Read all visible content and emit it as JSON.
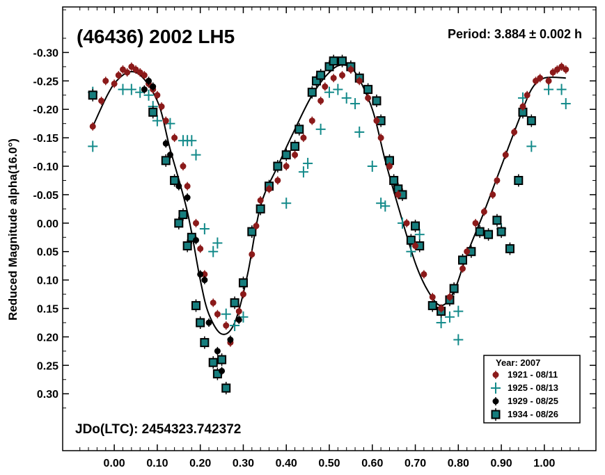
{
  "chart_data": {
    "type": "scatter",
    "title": "(46436) 2002 LH5",
    "period_text": "Period: 3.884 ± 0.002 h",
    "jdo_text": "JDo(LTC): 2454323.742372",
    "ylabel": "Reduced Magnitude alpha(16.0°)",
    "xlabel": "",
    "xlim": [
      -0.12,
      1.12
    ],
    "ylim": [
      0.4,
      -0.38
    ],
    "x_ticks": [
      "0.00",
      "0.10",
      "0.20",
      "0.30",
      "0.40",
      "0.50",
      "0.60",
      "0.70",
      "0.80",
      "0.90",
      "1.00"
    ],
    "y_ticks": [
      "-0.30",
      "-0.25",
      "-0.20",
      "-0.15",
      "-0.10",
      "-0.05",
      "0.00",
      "0.05",
      "0.10",
      "0.15",
      "0.20",
      "0.25",
      "0.30"
    ],
    "legend": {
      "title": "Year: 2007",
      "placement": "bottom-right",
      "entries": [
        "1921 - 08/11",
        "1925 - 08/13",
        "1929 - 08/25",
        "1934 - 08/26"
      ]
    },
    "colors": {
      "s1921": "#8b1a1a",
      "s1925": "#138a8a",
      "s1929": "#000000",
      "s1934": "#167d7d"
    },
    "fit_curve": [
      [
        -0.05,
        -0.17
      ],
      [
        0.0,
        -0.245
      ],
      [
        0.05,
        -0.265
      ],
      [
        0.1,
        -0.215
      ],
      [
        0.13,
        -0.13
      ],
      [
        0.17,
        -0.02
      ],
      [
        0.2,
        0.1
      ],
      [
        0.22,
        0.16
      ],
      [
        0.25,
        0.195
      ],
      [
        0.28,
        0.175
      ],
      [
        0.31,
        0.09
      ],
      [
        0.34,
        -0.03
      ],
      [
        0.38,
        -0.1
      ],
      [
        0.42,
        -0.165
      ],
      [
        0.46,
        -0.225
      ],
      [
        0.5,
        -0.265
      ],
      [
        0.53,
        -0.278
      ],
      [
        0.56,
        -0.265
      ],
      [
        0.6,
        -0.2
      ],
      [
        0.63,
        -0.11
      ],
      [
        0.66,
        -0.03
      ],
      [
        0.7,
        0.07
      ],
      [
        0.73,
        0.12
      ],
      [
        0.76,
        0.145
      ],
      [
        0.79,
        0.12
      ],
      [
        0.82,
        0.055
      ],
      [
        0.86,
        -0.02
      ],
      [
        0.9,
        -0.1
      ],
      [
        0.94,
        -0.18
      ],
      [
        0.97,
        -0.235
      ],
      [
        1.0,
        -0.255
      ],
      [
        1.05,
        -0.255
      ]
    ],
    "series": [
      {
        "name": "1921 - 08/11",
        "marker": "dot",
        "points": [
          [
            -0.05,
            -0.17
          ],
          [
            -0.03,
            -0.215
          ],
          [
            -0.02,
            -0.25
          ],
          [
            0.0,
            -0.245
          ],
          [
            0.01,
            -0.26
          ],
          [
            0.02,
            -0.27
          ],
          [
            0.03,
            -0.265
          ],
          [
            0.04,
            -0.275
          ],
          [
            0.05,
            -0.27
          ],
          [
            0.06,
            -0.265
          ],
          [
            0.07,
            -0.26
          ],
          [
            0.08,
            -0.245
          ],
          [
            0.09,
            -0.235
          ],
          [
            0.1,
            -0.225
          ],
          [
            0.11,
            -0.205
          ],
          [
            0.12,
            -0.18
          ],
          [
            0.14,
            -0.15
          ],
          [
            0.16,
            -0.1
          ],
          [
            0.17,
            -0.065
          ],
          [
            0.19,
            0.0
          ],
          [
            0.2,
            0.045
          ],
          [
            0.21,
            0.09
          ],
          [
            0.23,
            0.14
          ],
          [
            0.24,
            0.16
          ],
          [
            0.26,
            0.18
          ],
          [
            0.27,
            0.21
          ],
          [
            0.29,
            0.155
          ],
          [
            0.3,
            0.125
          ],
          [
            0.32,
            0.055
          ],
          [
            0.33,
            0.005
          ],
          [
            0.34,
            -0.04
          ],
          [
            0.36,
            -0.06
          ],
          [
            0.38,
            -0.075
          ],
          [
            0.4,
            -0.1
          ],
          [
            0.42,
            -0.12
          ],
          [
            0.44,
            -0.15
          ],
          [
            0.46,
            -0.18
          ],
          [
            0.48,
            -0.215
          ],
          [
            0.49,
            -0.24
          ],
          [
            0.51,
            -0.255
          ],
          [
            0.53,
            -0.26
          ],
          [
            0.55,
            -0.27
          ],
          [
            0.57,
            -0.25
          ],
          [
            0.59,
            -0.22
          ],
          [
            0.61,
            -0.18
          ],
          [
            0.62,
            -0.15
          ],
          [
            0.64,
            -0.1
          ],
          [
            0.66,
            -0.05
          ],
          [
            0.68,
            0.0
          ],
          [
            0.7,
            0.04
          ],
          [
            0.72,
            0.09
          ],
          [
            0.74,
            0.13
          ],
          [
            0.76,
            0.15
          ],
          [
            0.78,
            0.13
          ],
          [
            0.81,
            0.08
          ],
          [
            0.82,
            0.05
          ],
          [
            0.84,
            0.0
          ],
          [
            0.86,
            -0.02
          ],
          [
            0.88,
            -0.05
          ],
          [
            0.89,
            -0.075
          ],
          [
            0.91,
            -0.12
          ],
          [
            0.93,
            -0.16
          ],
          [
            0.95,
            -0.205
          ],
          [
            0.96,
            -0.225
          ],
          [
            0.98,
            -0.25
          ],
          [
            0.99,
            -0.255
          ],
          [
            1.01,
            -0.25
          ],
          [
            1.02,
            -0.265
          ],
          [
            1.03,
            -0.27
          ],
          [
            1.04,
            -0.275
          ],
          [
            1.05,
            -0.27
          ]
        ]
      },
      {
        "name": "1925 - 08/13",
        "marker": "cross",
        "points": [
          [
            -0.05,
            -0.23
          ],
          [
            -0.05,
            -0.135
          ],
          [
            0.02,
            -0.235
          ],
          [
            0.04,
            -0.235
          ],
          [
            0.06,
            -0.23
          ],
          [
            0.08,
            -0.225
          ],
          [
            0.09,
            -0.205
          ],
          [
            0.1,
            -0.18
          ],
          [
            0.13,
            -0.175
          ],
          [
            0.16,
            -0.145
          ],
          [
            0.17,
            -0.145
          ],
          [
            0.18,
            -0.145
          ],
          [
            0.19,
            -0.12
          ],
          [
            0.21,
            0.01
          ],
          [
            0.23,
            0.05
          ],
          [
            0.24,
            0.035
          ],
          [
            0.26,
            0.16
          ],
          [
            0.28,
            0.18
          ],
          [
            0.3,
            0.165
          ],
          [
            0.4,
            -0.035
          ],
          [
            0.44,
            -0.09
          ],
          [
            0.45,
            -0.105
          ],
          [
            0.48,
            -0.165
          ],
          [
            0.5,
            -0.23
          ],
          [
            0.52,
            -0.235
          ],
          [
            0.54,
            -0.22
          ],
          [
            0.56,
            -0.21
          ],
          [
            0.57,
            -0.16
          ],
          [
            0.6,
            -0.1
          ],
          [
            0.62,
            -0.035
          ],
          [
            0.63,
            -0.03
          ],
          [
            0.67,
            0.0
          ],
          [
            0.69,
            0.05
          ],
          [
            0.71,
            0.02
          ],
          [
            0.76,
            0.175
          ],
          [
            0.78,
            0.165
          ],
          [
            0.8,
            0.155
          ],
          [
            0.8,
            0.205
          ],
          [
            0.9,
            0.01
          ],
          [
            0.95,
            -0.22
          ],
          [
            0.97,
            -0.135
          ],
          [
            1.01,
            -0.235
          ],
          [
            1.04,
            -0.235
          ],
          [
            1.05,
            -0.21
          ]
        ]
      },
      {
        "name": "1929 - 08/25",
        "marker": "dot",
        "points": [
          [
            0.07,
            -0.235
          ],
          [
            0.08,
            -0.25
          ],
          [
            0.09,
            -0.24
          ],
          [
            0.12,
            -0.14
          ],
          [
            0.13,
            -0.12
          ],
          [
            0.15,
            -0.065
          ],
          [
            0.17,
            -0.045
          ],
          [
            0.19,
            0.03
          ],
          [
            0.2,
            0.09
          ],
          [
            0.21,
            0.1
          ],
          [
            0.22,
            0.175
          ],
          [
            0.24,
            0.225
          ],
          [
            0.25,
            0.26
          ],
          [
            0.27,
            0.205
          ],
          [
            0.29,
            0.17
          ]
        ]
      },
      {
        "name": "1934 - 08/26",
        "marker": "square",
        "points": [
          [
            -0.05,
            -0.225
          ],
          [
            0.09,
            -0.195
          ],
          [
            0.12,
            -0.11
          ],
          [
            0.14,
            -0.075
          ],
          [
            0.15,
            0.0
          ],
          [
            0.16,
            -0.015
          ],
          [
            0.17,
            0.04
          ],
          [
            0.18,
            0.025
          ],
          [
            0.19,
            0.145
          ],
          [
            0.2,
            0.175
          ],
          [
            0.21,
            0.21
          ],
          [
            0.23,
            0.245
          ],
          [
            0.24,
            0.265
          ],
          [
            0.25,
            0.24
          ],
          [
            0.26,
            0.29
          ],
          [
            0.28,
            0.14
          ],
          [
            0.3,
            0.105
          ],
          [
            0.32,
            0.015
          ],
          [
            0.34,
            -0.025
          ],
          [
            0.36,
            -0.065
          ],
          [
            0.38,
            -0.1
          ],
          [
            0.4,
            -0.12
          ],
          [
            0.42,
            -0.135
          ],
          [
            0.43,
            -0.165
          ],
          [
            0.46,
            -0.23
          ],
          [
            0.47,
            -0.25
          ],
          [
            0.48,
            -0.26
          ],
          [
            0.5,
            -0.275
          ],
          [
            0.51,
            -0.285
          ],
          [
            0.53,
            -0.285
          ],
          [
            0.55,
            -0.275
          ],
          [
            0.57,
            -0.255
          ],
          [
            0.59,
            -0.235
          ],
          [
            0.61,
            -0.215
          ],
          [
            0.62,
            -0.18
          ],
          [
            0.64,
            -0.11
          ],
          [
            0.65,
            -0.075
          ],
          [
            0.66,
            -0.06
          ],
          [
            0.67,
            -0.05
          ],
          [
            0.69,
            0.03
          ],
          [
            0.7,
            0.005
          ],
          [
            0.71,
            0.04
          ],
          [
            0.74,
            0.145
          ],
          [
            0.76,
            0.155
          ],
          [
            0.78,
            0.135
          ],
          [
            0.79,
            0.115
          ],
          [
            0.81,
            0.065
          ],
          [
            0.83,
            0.05
          ],
          [
            0.85,
            0.015
          ],
          [
            0.87,
            0.02
          ],
          [
            0.89,
            -0.005
          ],
          [
            0.9,
            0.015
          ],
          [
            0.92,
            0.045
          ],
          [
            0.94,
            -0.075
          ],
          [
            0.95,
            -0.195
          ],
          [
            0.97,
            -0.18
          ]
        ]
      }
    ]
  }
}
